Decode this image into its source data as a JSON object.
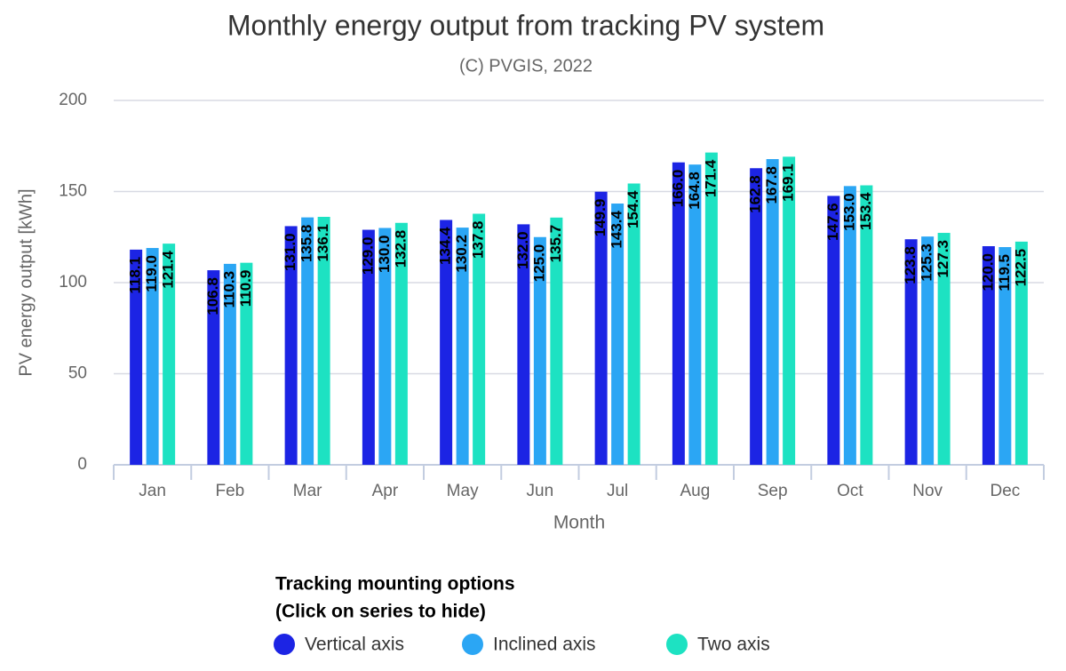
{
  "chart_data": {
    "type": "bar",
    "title": "Monthly energy output from tracking PV system",
    "subtitle": "(C) PVGIS, 2022",
    "x_label": "Month",
    "y_label": "PV energy output [kWh]",
    "categories": [
      "Jan",
      "Feb",
      "Mar",
      "Apr",
      "May",
      "Jun",
      "Jul",
      "Aug",
      "Sep",
      "Oct",
      "Nov",
      "Dec"
    ],
    "series": [
      {
        "name": "Vertical axis",
        "color": "#1c24e4",
        "values": [
          118.1,
          106.8,
          131.0,
          129.0,
          134.4,
          132.0,
          149.9,
          166.0,
          162.8,
          147.6,
          123.8,
          120.0
        ],
        "value_labels": [
          "118.1",
          "106.8",
          "131.0",
          "129.0",
          "134.4",
          "132.0",
          "149.9",
          "166.0",
          "162.8",
          "147.6",
          "123.8",
          "120.0"
        ]
      },
      {
        "name": "Inclined axis",
        "color": "#2ba6f4",
        "values": [
          119.0,
          110.3,
          135.8,
          130.0,
          130.2,
          125.0,
          143.4,
          164.8,
          167.8,
          153.0,
          125.3,
          119.5
        ],
        "value_labels": [
          "119.0",
          "110.3",
          "135.8",
          "130.0",
          "130.2",
          "125.0",
          "143.4",
          "164.8",
          "167.8",
          "153.0",
          "125.3",
          "119.5"
        ]
      },
      {
        "name": "Two axis",
        "color": "#1de2c2",
        "values": [
          121.4,
          110.9,
          136.1,
          132.8,
          137.8,
          135.7,
          154.4,
          171.4,
          169.1,
          153.4,
          127.3,
          122.5
        ],
        "value_labels": [
          "121.4",
          "110.9",
          "136.1",
          "132.8",
          "137.8",
          "135.7",
          "154.4",
          "171.4",
          "169.1",
          "153.4",
          "127.3",
          "122.5"
        ]
      }
    ],
    "ylim": [
      0,
      200
    ],
    "yticks": [
      0,
      50,
      100,
      150,
      200
    ],
    "grid": true,
    "legend_title": [
      "Tracking mounting options",
      "(Click on series to hide)"
    ]
  }
}
